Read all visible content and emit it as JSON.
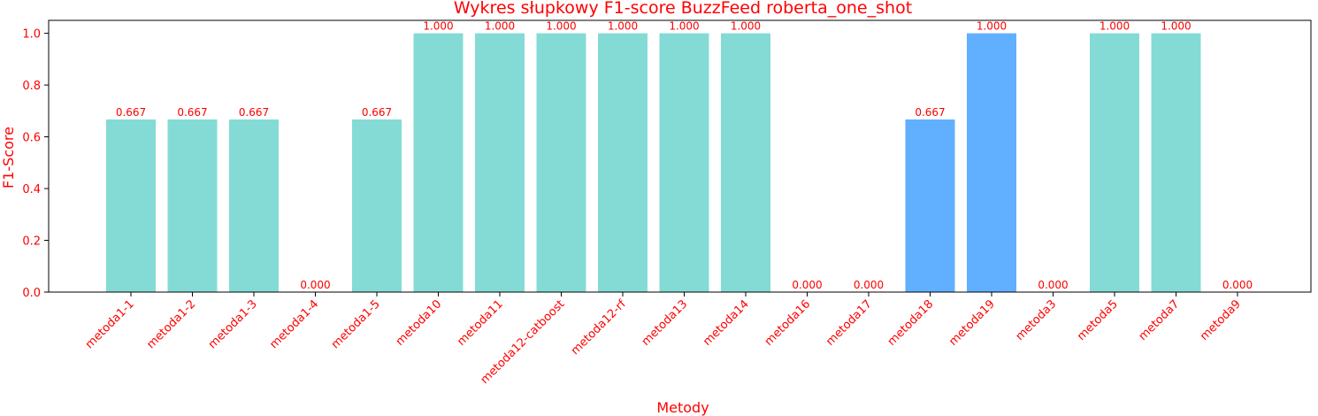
{
  "chart_data": {
    "type": "bar",
    "title": "Wykres słupkowy F1-score BuzzFeed roberta_one_shot",
    "xlabel": "Metody",
    "ylabel": "F1-Score",
    "categories": [
      "metoda1-1",
      "metoda1-2",
      "metoda1-3",
      "metoda1-4",
      "metoda1-5",
      "metoda10",
      "metoda11",
      "metoda12-catboost",
      "metoda12-rf",
      "metoda13",
      "metoda14",
      "metoda16",
      "metoda17",
      "metoda18",
      "metoda19",
      "metoda3",
      "metoda5",
      "metoda7",
      "metoda9"
    ],
    "values": [
      0.667,
      0.667,
      0.667,
      0.0,
      0.667,
      1.0,
      1.0,
      1.0,
      1.0,
      1.0,
      1.0,
      0.0,
      0.0,
      0.667,
      1.0,
      0.0,
      1.0,
      1.0,
      0.0
    ],
    "value_labels": [
      "0.667",
      "0.667",
      "0.667",
      "0.000",
      "0.667",
      "1.000",
      "1.000",
      "1.000",
      "1.000",
      "1.000",
      "1.000",
      "0.000",
      "0.000",
      "0.667",
      "1.000",
      "0.000",
      "1.000",
      "1.000",
      "0.000"
    ],
    "bar_groups": [
      "teal",
      "teal",
      "teal",
      "teal",
      "teal",
      "teal",
      "teal",
      "teal",
      "teal",
      "teal",
      "teal",
      "teal",
      "teal",
      "blue",
      "blue",
      "teal",
      "teal",
      "teal",
      "teal"
    ],
    "yticks": [
      "0.0",
      "0.2",
      "0.4",
      "0.6",
      "0.8",
      "1.0"
    ],
    "ylim": [
      0,
      1.05
    ],
    "grid": false,
    "colors": {
      "teal": "#84dbd5",
      "blue": "#61afff",
      "text": "#ff0000",
      "axis": "#000000"
    }
  }
}
